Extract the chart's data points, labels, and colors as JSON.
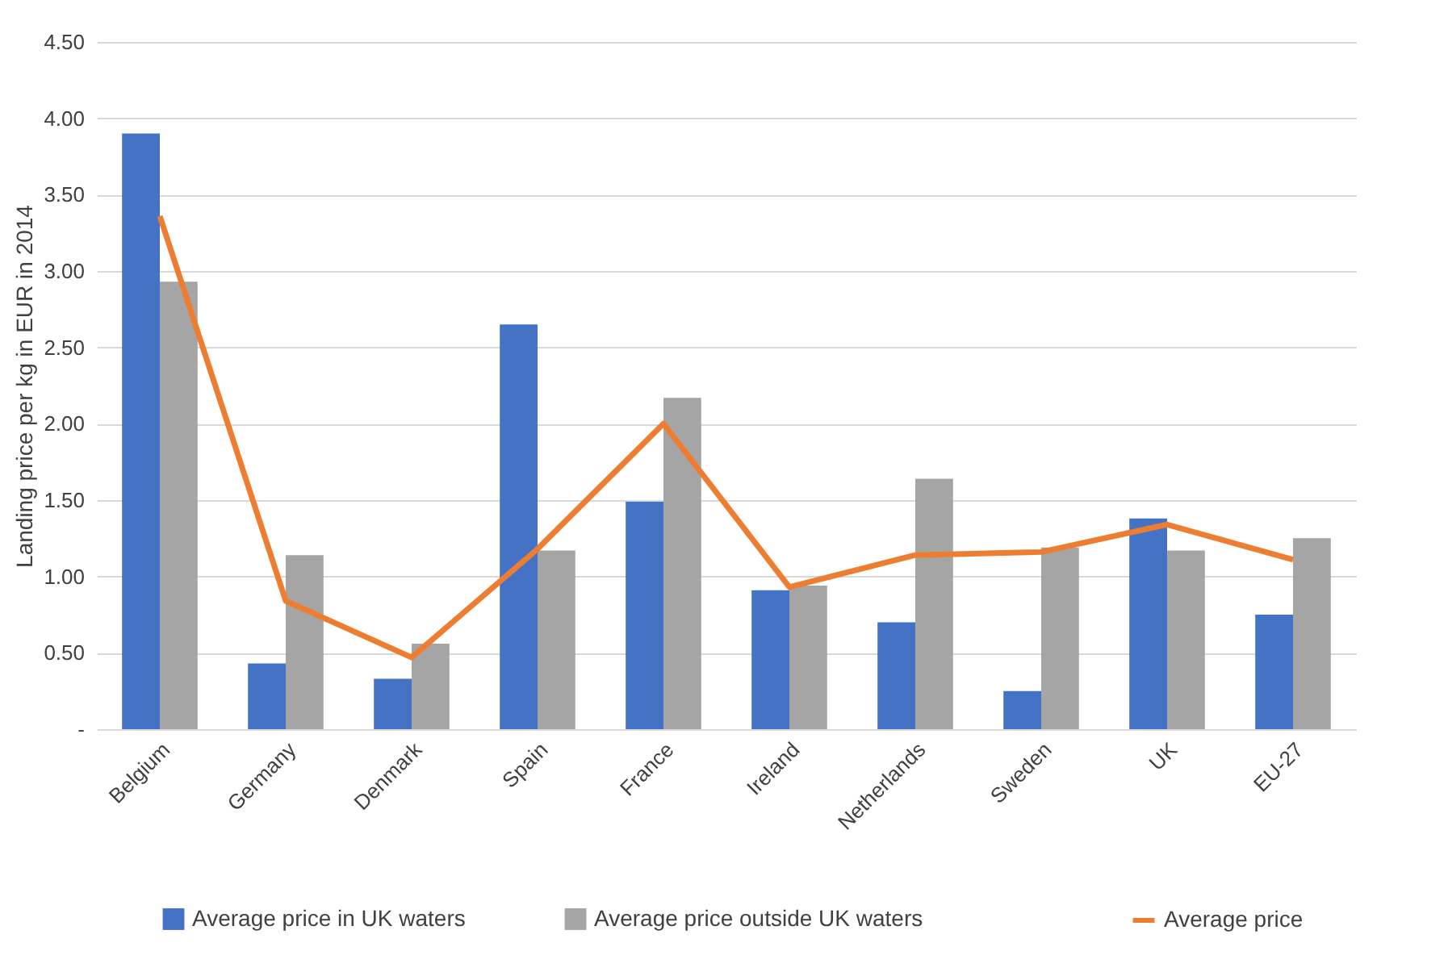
{
  "chart_data": {
    "type": "bar",
    "ylabel": "Landing price per kg in EUR in 2014",
    "categories": [
      "Belgium",
      "Germany",
      "Denmark",
      "Spain",
      "France",
      "Ireland",
      "Netherlands",
      "Sweden",
      "UK",
      "EU-27"
    ],
    "series": [
      {
        "name": "Average price in UK waters",
        "type": "bar",
        "color": "#4472c4",
        "values": [
          3.9,
          0.43,
          0.33,
          2.65,
          1.49,
          0.91,
          0.7,
          0.25,
          1.38,
          0.75
        ]
      },
      {
        "name": "Average price outside UK waters",
        "type": "bar",
        "color": "#a5a5a5",
        "values": [
          2.93,
          1.14,
          0.56,
          1.17,
          2.17,
          0.94,
          1.64,
          1.19,
          1.17,
          1.25
        ]
      },
      {
        "name": "Average price",
        "type": "line",
        "color": "#ed7d31",
        "values": [
          3.36,
          0.84,
          0.47,
          1.18,
          2.0,
          0.93,
          1.14,
          1.16,
          1.34,
          1.11
        ]
      }
    ],
    "ylim": [
      0,
      4.5
    ],
    "yticks": [
      {
        "value": 0,
        "label": "-"
      },
      {
        "value": 0.5,
        "label": "0.50"
      },
      {
        "value": 1,
        "label": "1.00"
      },
      {
        "value": 1.5,
        "label": "1.50"
      },
      {
        "value": 2,
        "label": "2.00"
      },
      {
        "value": 2.5,
        "label": "2.50"
      },
      {
        "value": 3,
        "label": "3.00"
      },
      {
        "value": 3.5,
        "label": "3.50"
      },
      {
        "value": 4,
        "label": "4.00"
      },
      {
        "value": 4.5,
        "label": "4.50"
      }
    ],
    "grid": "y",
    "legend": "bottom",
    "marker": "none"
  }
}
